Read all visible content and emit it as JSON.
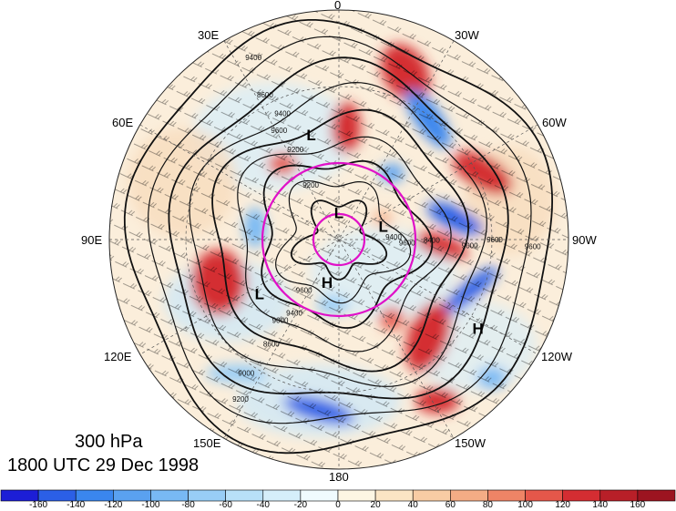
{
  "title": {
    "level": "300 hPa",
    "time": "1800 UTC 29 Dec 1998"
  },
  "longitude_labels": {
    "top": "0",
    "top_left": "30E",
    "top_right": "30W",
    "upper_left": "60E",
    "upper_right": "60W",
    "left": "90E",
    "right": "90W",
    "lower_left": "120E",
    "lower_right": "120W",
    "bottom_left": "150E",
    "bottom_right": "150W",
    "bottom": "180"
  },
  "pressure_centers": [
    {
      "label": "L",
      "lon": 15,
      "lat": 48
    },
    {
      "label": "L",
      "lon": 0,
      "lat": 80
    },
    {
      "label": "L",
      "lon": -75,
      "lat": 72
    },
    {
      "label": "H",
      "lon": 165,
      "lat": 72
    },
    {
      "label": "L",
      "lon": 125,
      "lat": 52
    },
    {
      "label": "H",
      "lon": -123,
      "lat": 25
    }
  ],
  "contour_labels": [
    "9400",
    "9400",
    "9600",
    "9600",
    "9200",
    "9200",
    "8400",
    "8600",
    "8600",
    "9600",
    "9600",
    "9200",
    "9000",
    "9000",
    "9400",
    "9600",
    "9000",
    "9400"
  ],
  "colorbar": {
    "labels": [
      "-160",
      "-140",
      "-120",
      "-100",
      "-80",
      "-60",
      "-40",
      "-20",
      "0",
      "20",
      "40",
      "60",
      "80",
      "100",
      "120",
      "140",
      "160"
    ],
    "colors": [
      "#1c1ed6",
      "#2b5fe6",
      "#3a86ee",
      "#5aa1f0",
      "#78b9f4",
      "#98cdf6",
      "#b8e0f8",
      "#d5eefa",
      "#f0fbfe",
      "#fdf6e3",
      "#fbe5c4",
      "#f8cca4",
      "#f4ac85",
      "#ee8466",
      "#e5574a",
      "#d42d32",
      "#b81f28",
      "#9c1420"
    ]
  },
  "circles": {
    "color": "#e011c8",
    "latitudes": [
      60,
      80
    ]
  }
}
